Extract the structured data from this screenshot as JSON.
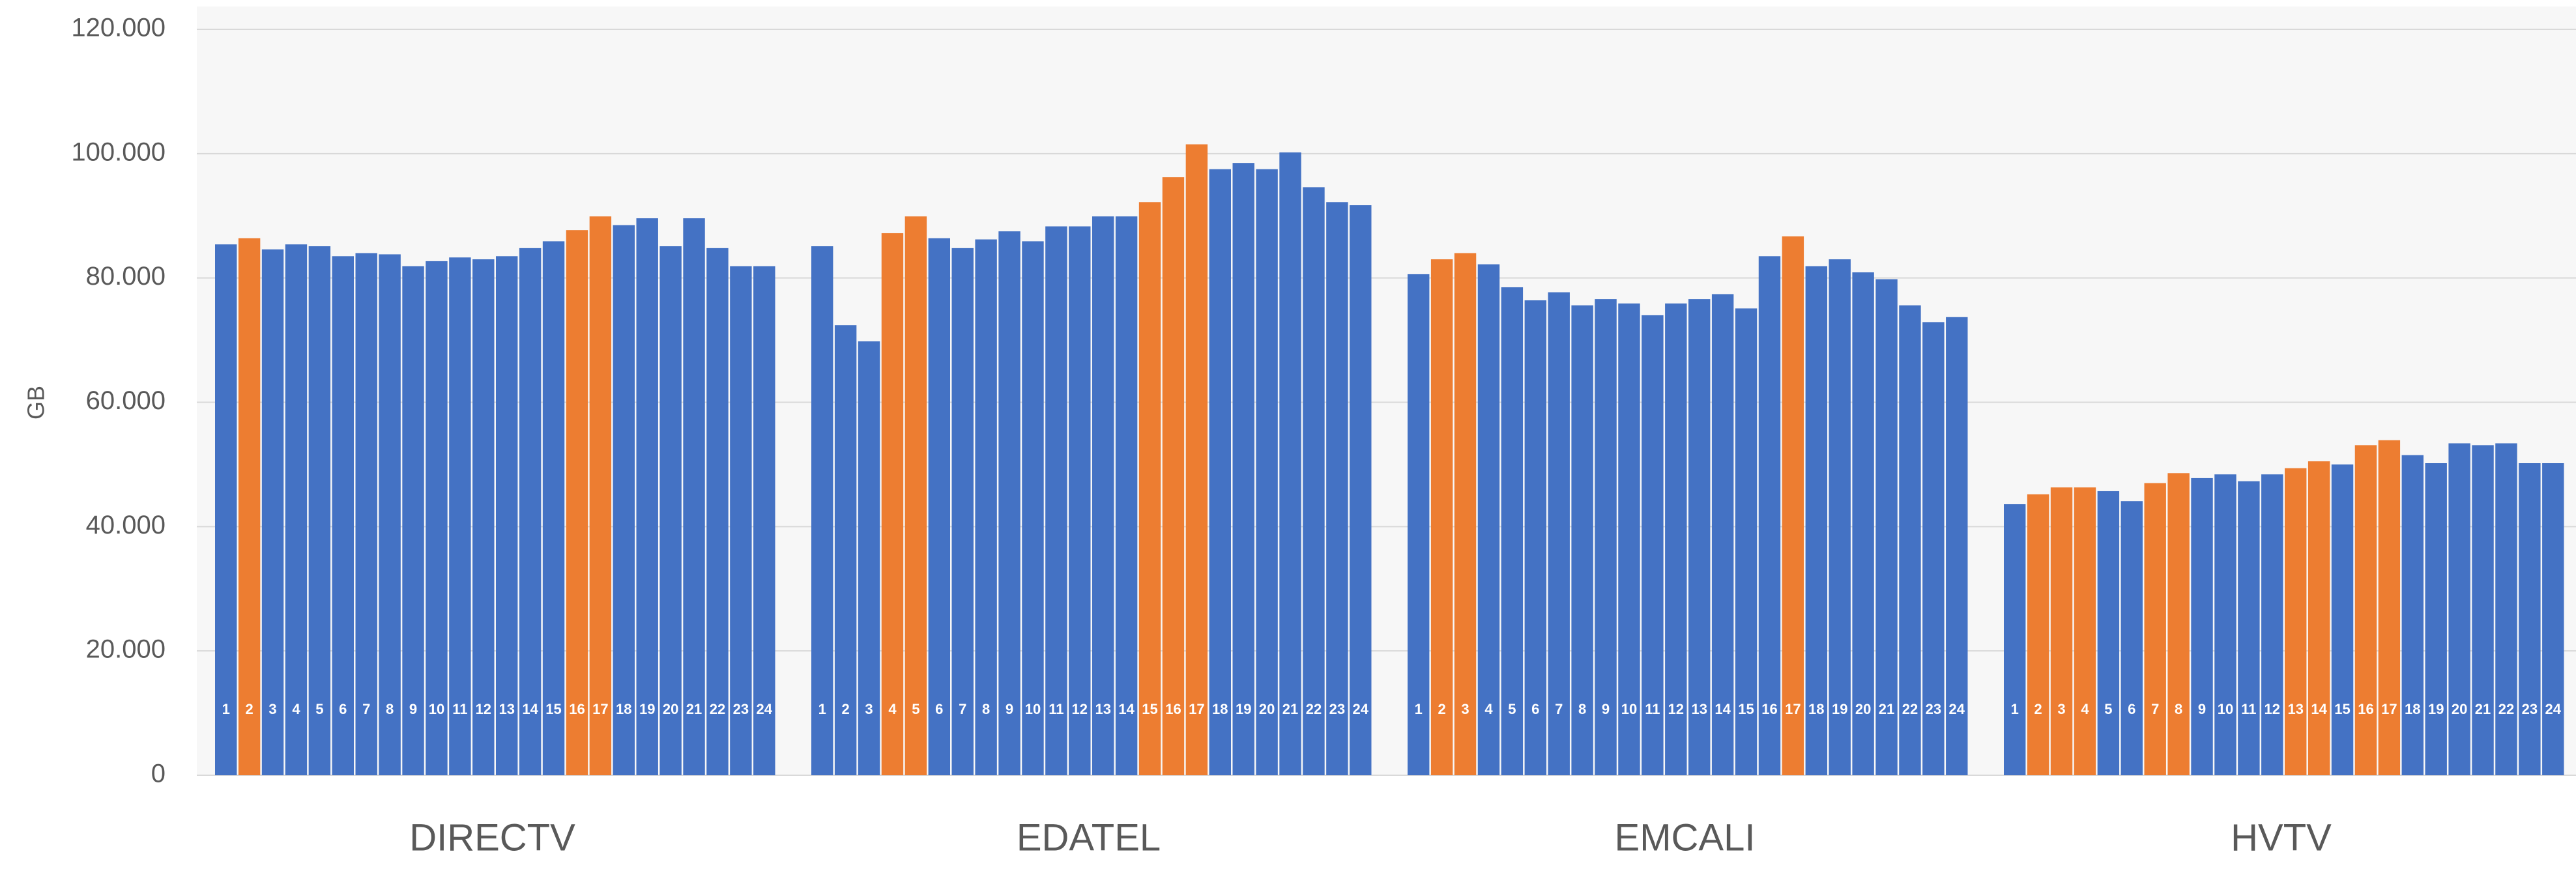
{
  "chart_data": {
    "type": "grouped-bar",
    "y_label": "GB",
    "ylim": [
      0,
      120000
    ],
    "yticks": [
      0,
      {
        "value": 20000,
        "label": "20.000"
      },
      {
        "value": 40000,
        "label": "40.000"
      },
      {
        "value": 60000,
        "label": "60.000"
      },
      {
        "value": 80000,
        "label": "80.000"
      },
      {
        "value": 100000,
        "label": "100.000"
      },
      {
        "value": 120000,
        "label": "120.000"
      }
    ],
    "grid": true,
    "bar_labels": [
      "1",
      "2",
      "3",
      "4",
      "5",
      "6",
      "7",
      "8",
      "9",
      "10",
      "11",
      "12",
      "13",
      "14",
      "15",
      "16",
      "17",
      "18",
      "19",
      "20",
      "21",
      "22",
      "23",
      "24"
    ],
    "groups": [
      {
        "name": "DIRECTV",
        "values": [
          85400,
          86400,
          84600,
          85400,
          85100,
          83500,
          84000,
          83800,
          81900,
          82700,
          83300,
          83000,
          83500,
          84800,
          85900,
          87700,
          89900,
          88500,
          89600,
          85100,
          89600,
          84800,
          81900,
          81900
        ],
        "colors": [
          "#4472c4",
          "#ed7d31",
          "#4472c4",
          "#4472c4",
          "#4472c4",
          "#4472c4",
          "#4472c4",
          "#4472c4",
          "#4472c4",
          "#4472c4",
          "#4472c4",
          "#4472c4",
          "#4472c4",
          "#4472c4",
          "#4472c4",
          "#ed7d31",
          "#ed7d31",
          "#4472c4",
          "#4472c4",
          "#4472c4",
          "#4472c4",
          "#4472c4",
          "#4472c4",
          "#4472c4"
        ]
      },
      {
        "name": "EDATEL",
        "values": [
          85100,
          72400,
          69800,
          87200,
          89900,
          86400,
          84800,
          86200,
          87500,
          85900,
          88300,
          88300,
          89900,
          89900,
          92200,
          96200,
          101500,
          97500,
          98500,
          97500,
          100200,
          94600,
          92200,
          91700
        ],
        "colors": [
          "#4472c4",
          "#4472c4",
          "#4472c4",
          "#ed7d31",
          "#ed7d31",
          "#4472c4",
          "#4472c4",
          "#4472c4",
          "#4472c4",
          "#4472c4",
          "#4472c4",
          "#4472c4",
          "#4472c4",
          "#4472c4",
          "#ed7d31",
          "#ed7d31",
          "#ed7d31",
          "#4472c4",
          "#4472c4",
          "#4472c4",
          "#4472c4",
          "#4472c4",
          "#4472c4",
          "#4472c4"
        ]
      },
      {
        "name": "EMCALI",
        "values": [
          80600,
          83000,
          84000,
          82200,
          78500,
          76400,
          77700,
          75600,
          76600,
          75900,
          74000,
          75900,
          76600,
          77400,
          75100,
          83500,
          86700,
          81900,
          83000,
          80900,
          79800,
          75600,
          72900,
          73700
        ],
        "colors": [
          "#4472c4",
          "#ed7d31",
          "#ed7d31",
          "#4472c4",
          "#4472c4",
          "#4472c4",
          "#4472c4",
          "#4472c4",
          "#4472c4",
          "#4472c4",
          "#4472c4",
          "#4472c4",
          "#4472c4",
          "#4472c4",
          "#4472c4",
          "#4472c4",
          "#ed7d31",
          "#4472c4",
          "#4472c4",
          "#4472c4",
          "#4472c4",
          "#4472c4",
          "#4472c4",
          "#4472c4"
        ]
      },
      {
        "name": "HVTV",
        "values": [
          43600,
          45200,
          46300,
          46300,
          45700,
          44100,
          47000,
          48600,
          47800,
          48400,
          47300,
          48400,
          49400,
          50500,
          50000,
          53100,
          53900,
          51500,
          50200,
          53400,
          53100,
          53400,
          50200,
          50200
        ],
        "colors": [
          "#4472c4",
          "#ed7d31",
          "#ed7d31",
          "#ed7d31",
          "#4472c4",
          "#4472c4",
          "#ed7d31",
          "#ed7d31",
          "#4472c4",
          "#4472c4",
          "#4472c4",
          "#4472c4",
          "#ed7d31",
          "#ed7d31",
          "#4472c4",
          "#ed7d31",
          "#ed7d31",
          "#4472c4",
          "#4472c4",
          "#4472c4",
          "#4472c4",
          "#4472c4",
          "#4472c4",
          "#4472c4"
        ]
      }
    ]
  }
}
